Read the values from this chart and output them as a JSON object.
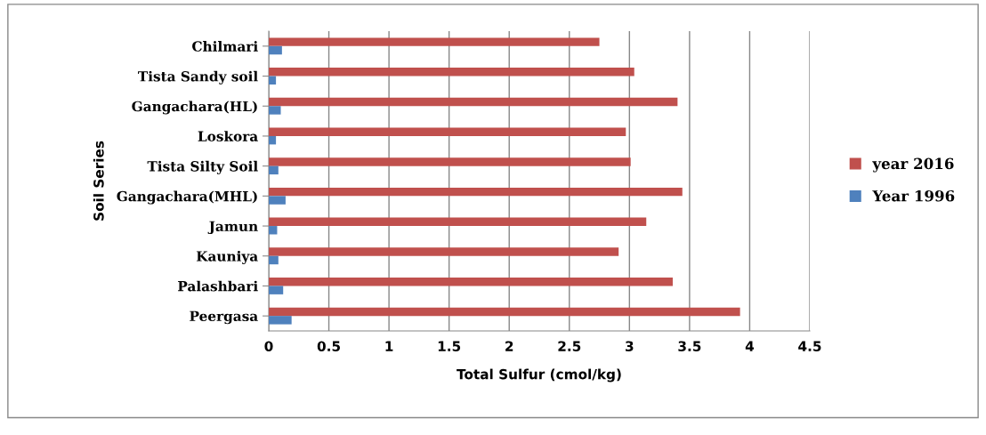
{
  "chart_data": {
    "type": "bar",
    "orientation": "horizontal",
    "xlabel": "Total Sulfur (cmol/kg)",
    "ylabel": "Soil Series",
    "categories": [
      "Chilmari",
      "Tista Sandy soil",
      "Gangachara(HL)",
      "Loskora",
      "Tista Silty Soil",
      "Gangachara(MHL)",
      "Jamun",
      "Kauniya",
      "Palashbari",
      "Peergasa"
    ],
    "series": [
      {
        "name": "year 2016",
        "color": "#c0504d",
        "values": [
          2.75,
          3.04,
          3.4,
          2.97,
          3.01,
          3.44,
          3.14,
          2.91,
          3.36,
          3.92
        ]
      },
      {
        "name": "Year 1996",
        "color": "#4f81bd",
        "values": [
          0.11,
          0.06,
          0.1,
          0.06,
          0.08,
          0.14,
          0.07,
          0.08,
          0.12,
          0.19
        ]
      }
    ],
    "xlim": [
      0,
      4.5
    ],
    "xticks": [
      0,
      0.5,
      1,
      1.5,
      2,
      2.5,
      3,
      3.5,
      4,
      4.5
    ],
    "grid": "x",
    "legend": "right"
  }
}
